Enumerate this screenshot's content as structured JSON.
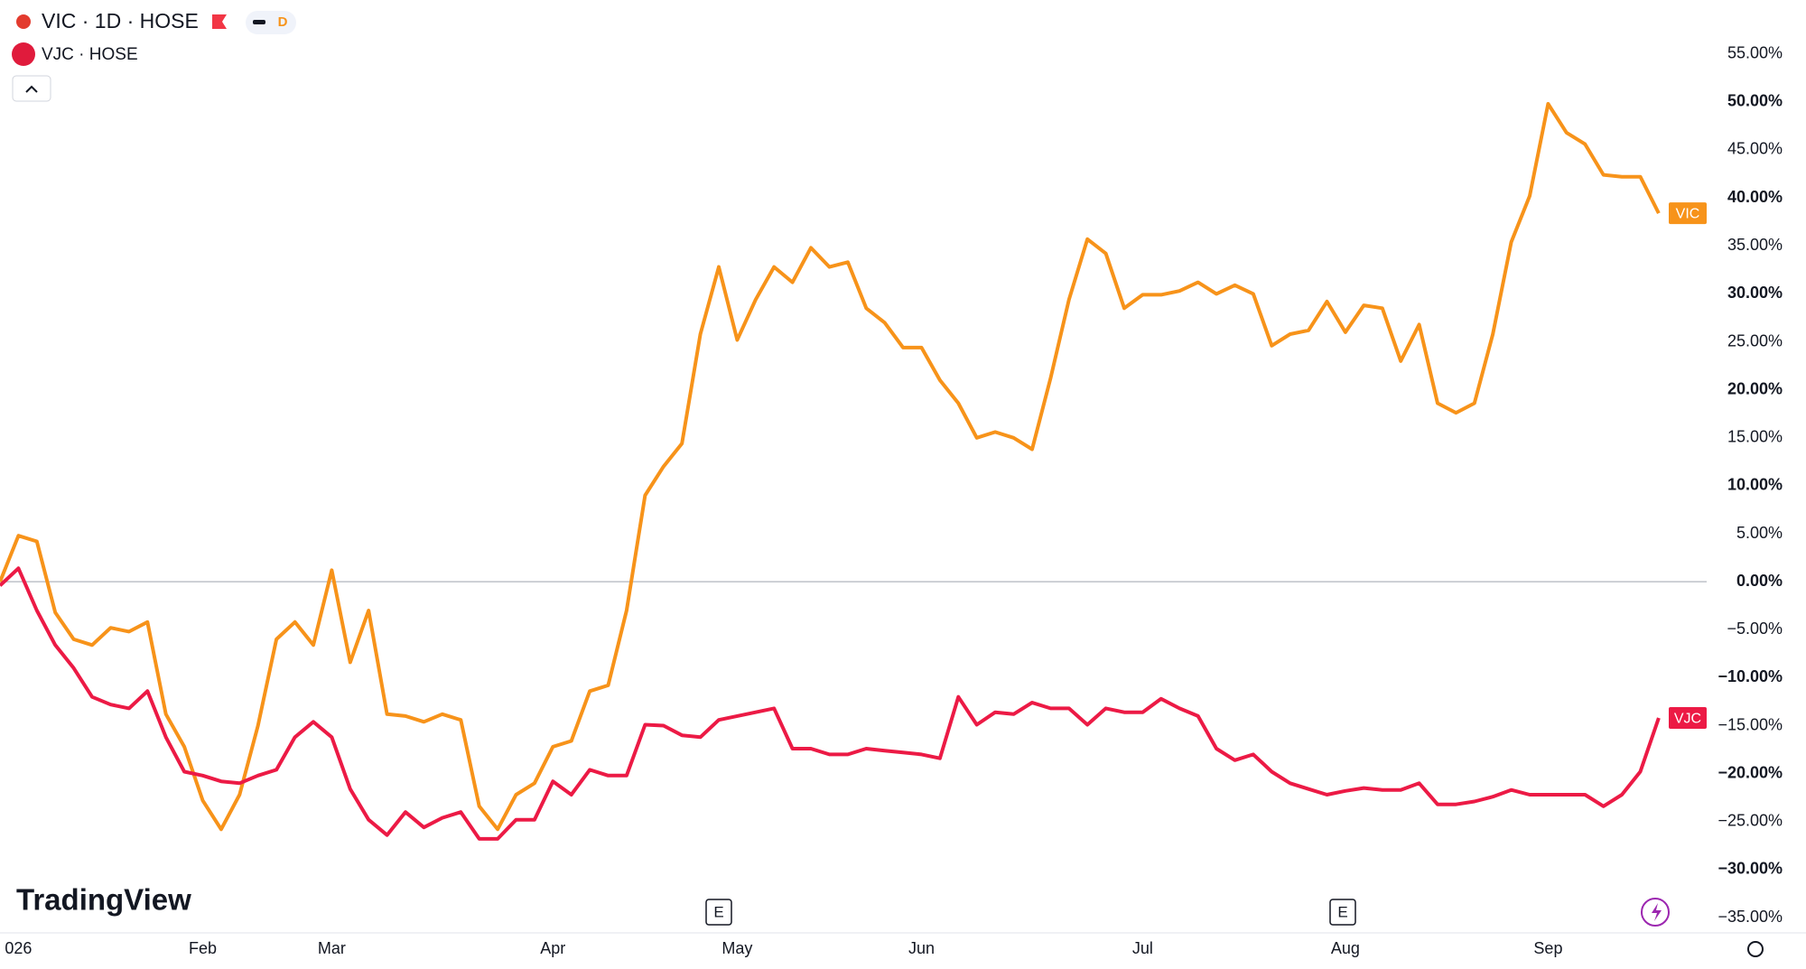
{
  "header": {
    "symbol_title": "VIC · 1D · HOSE",
    "interval_badge": "D",
    "compare_symbol": "VJC · HOSE"
  },
  "footer": {
    "branding": "TradingView",
    "event_markers": [
      "E",
      "E"
    ]
  },
  "chart_data": {
    "type": "line",
    "categories": [
      null,
      "026",
      null,
      null,
      null,
      null,
      null,
      null,
      null,
      null,
      null,
      "Feb",
      null,
      null,
      null,
      null,
      null,
      null,
      "Mar",
      null,
      null,
      null,
      null,
      null,
      null,
      null,
      null,
      null,
      null,
      null,
      "Apr",
      null,
      null,
      null,
      null,
      null,
      null,
      null,
      null,
      null,
      "May",
      null,
      null,
      null,
      null,
      null,
      null,
      null,
      null,
      null,
      "Jun",
      null,
      null,
      null,
      null,
      null,
      null,
      null,
      null,
      null,
      null,
      null,
      "Jul",
      null,
      null,
      null,
      null,
      null,
      null,
      null,
      null,
      null,
      null,
      "Aug",
      null,
      null,
      null,
      null,
      null,
      null,
      null,
      null,
      null,
      null,
      "Sep",
      null,
      null,
      null,
      null,
      null,
      null
    ],
    "series": [
      {
        "name": "VIC",
        "color": "#f7931a",
        "values": [
          0.0,
          4.8,
          4.2,
          -3.2,
          -6,
          -6.6,
          -4.8,
          -5.2,
          -4.2,
          -13.8,
          -17.2,
          -22.8,
          -25.8,
          -22.2,
          -15,
          -6,
          -4.2,
          -6.6,
          1.2,
          -8.4,
          -3,
          -13.8,
          -14,
          -14.6,
          -13.8,
          -14.4,
          -23.4,
          -25.8,
          -22.2,
          -21,
          -17.2,
          -16.6,
          -11.4,
          -10.8,
          -3,
          9,
          12,
          14.4,
          25.8,
          32.8,
          25.2,
          29.4,
          32.8,
          31.2,
          34.8,
          32.8,
          33.3,
          28.5,
          27,
          24.4,
          24.4,
          21,
          18.6,
          15,
          15.6,
          15,
          13.8,
          21.2,
          29.4,
          35.7,
          34.2,
          28.5,
          29.9,
          29.9,
          30.3,
          31.2,
          30,
          30.9,
          30,
          24.6,
          25.8,
          26.2,
          29.2,
          26,
          28.8,
          28.5,
          23,
          26.8,
          18.6,
          17.6,
          18.6,
          25.8,
          35.4,
          40.2,
          49.8,
          46.8,
          45.6,
          42.4,
          42.2,
          42.2,
          38.4
        ]
      },
      {
        "name": "VJC",
        "color": "#ec1a45",
        "values": [
          -0.4,
          1.4,
          -3,
          -6.6,
          -9,
          -12,
          -12.8,
          -13.2,
          -11.4,
          -16.2,
          -19.8,
          -20.2,
          -20.8,
          -21,
          -20.2,
          -19.6,
          -16.2,
          -14.6,
          -16.2,
          -21.6,
          -24.8,
          -26.4,
          -24,
          -25.6,
          -24.6,
          -24,
          -26.8,
          -26.8,
          -24.8,
          -24.8,
          -20.8,
          -22.2,
          -19.6,
          -20.2,
          -20.2,
          -14.9,
          -15,
          -16,
          -16.2,
          -14.4,
          -14,
          -13.6,
          -13.2,
          -17.4,
          -17.4,
          -18,
          -18,
          -17.4,
          -17.6,
          -17.8,
          -18,
          -18.4,
          -12,
          -14.9,
          -13.6,
          -13.8,
          -12.6,
          -13.2,
          -13.2,
          -14.9,
          -13.2,
          -13.6,
          -13.6,
          -12.2,
          -13.2,
          -14,
          -17.4,
          -18.6,
          -18,
          -19.8,
          -21,
          -21.6,
          -22.2,
          -21.8,
          -21.5,
          -21.7,
          -21.7,
          -21,
          -23.2,
          -23.2,
          -22.9,
          -22.4,
          -21.7,
          -22.2,
          -22.2,
          -22.2,
          -22.2,
          -23.4,
          -22.2,
          -19.8,
          -14.2
        ]
      }
    ],
    "ylim": [
      -36.5,
      60
    ],
    "yticks": [
      {
        "value": 55,
        "label": "55.00%"
      },
      {
        "value": 50,
        "label": "50.00%"
      },
      {
        "value": 45,
        "label": "45.00%"
      },
      {
        "value": 40,
        "label": "40.00%"
      },
      {
        "value": 35,
        "label": "35.00%"
      },
      {
        "value": 30,
        "label": "30.00%"
      },
      {
        "value": 25,
        "label": "25.00%"
      },
      {
        "value": 20,
        "label": "20.00%"
      },
      {
        "value": 15,
        "label": "15.00%"
      },
      {
        "value": 10,
        "label": "10.00%"
      },
      {
        "value": 5,
        "label": "5.00%"
      },
      {
        "value": 0,
        "label": "0.00%"
      },
      {
        "value": -5,
        "label": "−5.00%"
      },
      {
        "value": -10,
        "label": "−10.00%"
      },
      {
        "value": -15,
        "label": "−15.00%"
      },
      {
        "value": -20,
        "label": "−20.00%"
      },
      {
        "value": -25,
        "label": "−25.00%"
      },
      {
        "value": -30,
        "label": "−30.00%"
      },
      {
        "value": -35,
        "label": "−35.00%"
      }
    ]
  }
}
